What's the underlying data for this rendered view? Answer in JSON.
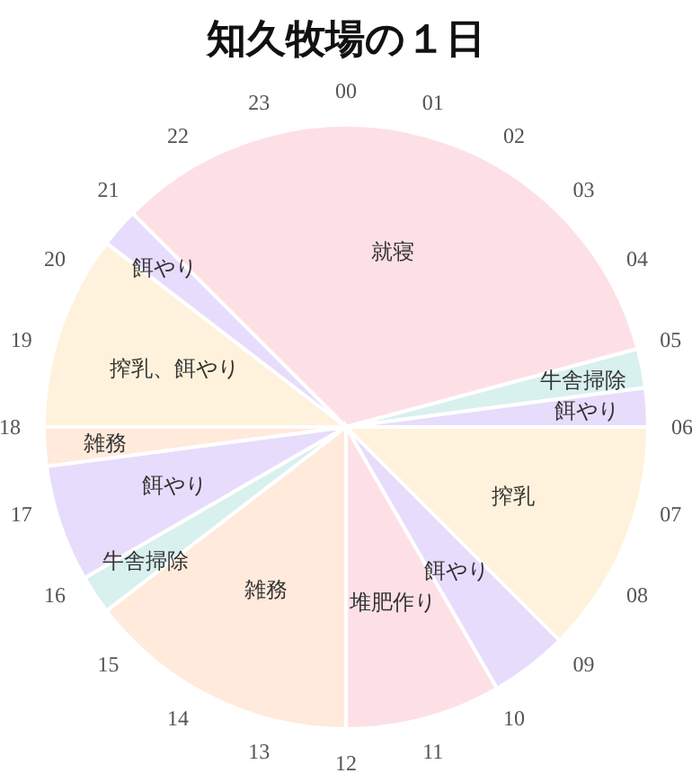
{
  "chart_data": {
    "type": "pie",
    "title": "知久牧場の１日",
    "categories": [
      "就寝",
      "牛舎掃除",
      "餌やり",
      "搾乳",
      "餌やり",
      "堆肥作り",
      "雑務",
      "牛舎掃除",
      "餌やり",
      "雑務",
      "搾乳、餌やり",
      "餌やり"
    ],
    "values": [
      33.3333,
      2.0833,
      2.0833,
      12.5,
      4.1667,
      8.3333,
      14.5833,
      2.0833,
      6.25,
      2.0833,
      10.4167,
      2.0833
    ],
    "colors": [
      "#fde0e6",
      "#d8f0ee",
      "#e8dcfc",
      "#fff2dc",
      "#e8dcfc",
      "#fde0e6",
      "#ffeadb",
      "#d8f0ee",
      "#e8dcfc",
      "#ffeadb",
      "#fff2dc",
      "#e8dcfc"
    ],
    "annotations": [
      "00",
      "01",
      "02",
      "03",
      "04",
      "05",
      "06",
      "07",
      "08",
      "09",
      "10",
      "11",
      "12",
      "13",
      "14",
      "15",
      "16",
      "17",
      "18",
      "19",
      "20",
      "21",
      "22",
      "23"
    ]
  }
}
